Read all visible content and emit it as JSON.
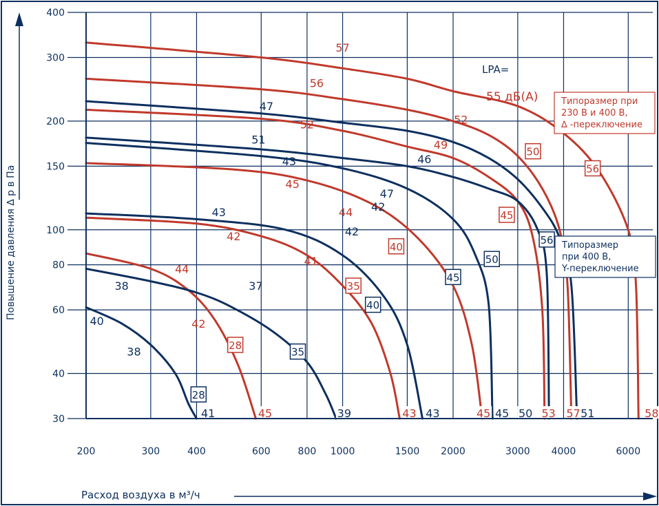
{
  "chart_data": {
    "type": "line",
    "xlabel": "Расход воздуха в м³/ч",
    "ylabel": "Повышение давления ∆ p в Па",
    "x_scale": "log",
    "y_scale": "log",
    "xlim": [
      200,
      7000
    ],
    "ylim": [
      30,
      400
    ],
    "x_ticks": [
      200,
      300,
      400,
      600,
      800,
      1000,
      1500,
      2000,
      3000,
      4000,
      6000
    ],
    "x_tick_labels": [
      "200",
      "300",
      "400",
      "600",
      "800",
      "1000",
      "1500",
      "2000",
      "3000",
      "4000",
      "6000"
    ],
    "y_ticks": [
      30,
      40,
      60,
      80,
      100,
      150,
      200,
      300,
      400
    ],
    "y_tick_labels": [
      "30",
      "40",
      "60",
      "80",
      "100",
      "150",
      "200",
      "300",
      "400"
    ],
    "grid": true,
    "colors": {
      "red": "#c0392b",
      "navy": "#0d2f5e"
    },
    "lpa_label": "LPA=",
    "db_label": "55 дБ(А)",
    "legend_red": [
      "Типоразмер при",
      "230 В и 400 В,",
      "∆ -переключение"
    ],
    "legend_navy": [
      "Типоразмер",
      "при 400 В,",
      "Y-переключение"
    ],
    "series": [
      {
        "size": "28",
        "color": "navy",
        "points": [
          [
            200,
            61
          ],
          [
            250,
            55
          ],
          [
            300,
            48
          ],
          [
            350,
            40
          ],
          [
            380,
            33
          ],
          [
            400,
            30
          ]
        ]
      },
      {
        "size": "28",
        "color": "red",
        "points": [
          [
            200,
            86
          ],
          [
            300,
            78
          ],
          [
            380,
            68
          ],
          [
            450,
            56
          ],
          [
            520,
            42
          ],
          [
            580,
            30
          ]
        ]
      },
      {
        "size": "35",
        "color": "navy",
        "points": [
          [
            200,
            78
          ],
          [
            300,
            72
          ],
          [
            400,
            67
          ],
          [
            500,
            61
          ],
          [
            650,
            52
          ],
          [
            800,
            43
          ],
          [
            900,
            35
          ],
          [
            960,
            30
          ]
        ]
      },
      {
        "size": "35",
        "color": "red",
        "points": [
          [
            200,
            108
          ],
          [
            400,
            104
          ],
          [
            600,
            96
          ],
          [
            800,
            85
          ],
          [
            1000,
            70
          ],
          [
            1200,
            55
          ],
          [
            1350,
            40
          ],
          [
            1430,
            30
          ]
        ]
      },
      {
        "size": "40",
        "color": "navy",
        "points": [
          [
            200,
            111
          ],
          [
            400,
            107
          ],
          [
            700,
            100
          ],
          [
            1000,
            85
          ],
          [
            1300,
            65
          ],
          [
            1500,
            48
          ],
          [
            1650,
            30
          ]
        ]
      },
      {
        "size": "40",
        "color": "red",
        "points": [
          [
            200,
            153
          ],
          [
            500,
            147
          ],
          [
            800,
            137
          ],
          [
            1200,
            118
          ],
          [
            1600,
            95
          ],
          [
            2000,
            70
          ],
          [
            2250,
            48
          ],
          [
            2400,
            30
          ]
        ]
      },
      {
        "size": "45",
        "color": "navy",
        "points": [
          [
            200,
            174
          ],
          [
            600,
            160
          ],
          [
            1000,
            148
          ],
          [
            1500,
            130
          ],
          [
            2000,
            107
          ],
          [
            2300,
            85
          ],
          [
            2500,
            62
          ],
          [
            2560,
            30
          ]
        ]
      },
      {
        "size": "45",
        "color": "red",
        "points": [
          [
            200,
            215
          ],
          [
            600,
            203
          ],
          [
            1000,
            188
          ],
          [
            1500,
            170
          ],
          [
            2000,
            158
          ],
          [
            2500,
            140
          ],
          [
            3000,
            120
          ],
          [
            3300,
            95
          ],
          [
            3500,
            60
          ],
          [
            3550,
            30
          ]
        ]
      },
      {
        "size": "50",
        "color": "navy",
        "points": [
          [
            200,
            180
          ],
          [
            600,
            167
          ],
          [
            1000,
            158
          ],
          [
            1500,
            150
          ],
          [
            2000,
            140
          ],
          [
            2500,
            130
          ],
          [
            3000,
            120
          ],
          [
            3400,
            100
          ],
          [
            3600,
            75
          ],
          [
            3650,
            30
          ]
        ]
      },
      {
        "size": "50",
        "color": "red",
        "points": [
          [
            200,
            262
          ],
          [
            600,
            245
          ],
          [
            1000,
            230
          ],
          [
            1500,
            215
          ],
          [
            2000,
            200
          ],
          [
            2500,
            183
          ],
          [
            3000,
            160
          ],
          [
            3500,
            130
          ],
          [
            3900,
            100
          ],
          [
            4100,
            70
          ],
          [
            4200,
            30
          ]
        ]
      },
      {
        "size": "56",
        "color": "navy",
        "points": [
          [
            200,
            227
          ],
          [
            600,
            210
          ],
          [
            1000,
            198
          ],
          [
            1500,
            188
          ],
          [
            2000,
            175
          ],
          [
            2500,
            158
          ],
          [
            3000,
            138
          ],
          [
            3500,
            115
          ],
          [
            3900,
            95
          ],
          [
            4200,
            70
          ],
          [
            4350,
            30
          ]
        ]
      },
      {
        "size": "56",
        "color": "red",
        "points": [
          [
            200,
            330
          ],
          [
            600,
            300
          ],
          [
            1000,
            280
          ],
          [
            1500,
            262
          ],
          [
            2000,
            242
          ],
          [
            3000,
            220
          ],
          [
            4000,
            185
          ],
          [
            5000,
            145
          ],
          [
            6000,
            100
          ],
          [
            6300,
            70
          ],
          [
            6400,
            30
          ]
        ]
      }
    ],
    "size_labels": [
      {
        "text": "28",
        "color": "navy",
        "at": [
          405,
          35
        ]
      },
      {
        "text": "28",
        "color": "red",
        "at": [
          510,
          48
        ]
      },
      {
        "text": "35",
        "color": "navy",
        "at": [
          755,
          46
        ]
      },
      {
        "text": "35",
        "color": "red",
        "at": [
          1070,
          70
        ]
      },
      {
        "text": "40",
        "color": "navy",
        "at": [
          1210,
          62
        ]
      },
      {
        "text": "40",
        "color": "red",
        "at": [
          1400,
          90
        ]
      },
      {
        "text": "45",
        "color": "navy",
        "at": [
          2000,
          74
        ]
      },
      {
        "text": "45",
        "color": "red",
        "at": [
          2800,
          110
        ]
      },
      {
        "text": "50",
        "color": "navy",
        "at": [
          2550,
          83
        ]
      },
      {
        "text": "50",
        "color": "red",
        "at": [
          3300,
          165
        ]
      },
      {
        "text": "56",
        "color": "navy",
        "at": [
          3600,
          94
        ]
      },
      {
        "text": "56",
        "color": "red",
        "at": [
          4800,
          148
        ]
      }
    ],
    "db_labels": [
      {
        "text": "57",
        "color": "red",
        "at": [
          1000,
          320
        ]
      },
      {
        "text": "56",
        "color": "red",
        "at": [
          850,
          255
        ]
      },
      {
        "text": "52",
        "color": "red",
        "at": [
          800,
          196
        ]
      },
      {
        "text": "52",
        "color": "red",
        "at": [
          2100,
          202
        ]
      },
      {
        "text": "49",
        "color": "red",
        "at": [
          1850,
          172
        ]
      },
      {
        "text": "45",
        "color": "red",
        "at": [
          730,
          134
        ]
      },
      {
        "text": "44",
        "color": "red",
        "at": [
          1020,
          112
        ]
      },
      {
        "text": "42",
        "color": "red",
        "at": [
          505,
          96
        ]
      },
      {
        "text": "41",
        "color": "red",
        "at": [
          820,
          82
        ]
      },
      {
        "text": "44",
        "color": "red",
        "at": [
          365,
          78
        ]
      },
      {
        "text": "42",
        "color": "red",
        "at": [
          405,
          55
        ]
      },
      {
        "text": "47",
        "color": "navy",
        "at": [
          620,
          220
        ]
      },
      {
        "text": "51",
        "color": "navy",
        "at": [
          590,
          178
        ]
      },
      {
        "text": "43",
        "color": "navy",
        "at": [
          715,
          155
        ]
      },
      {
        "text": "46",
        "color": "navy",
        "at": [
          1670,
          157
        ]
      },
      {
        "text": "47",
        "color": "navy",
        "at": [
          1320,
          126
        ]
      },
      {
        "text": "42",
        "color": "navy",
        "at": [
          1250,
          116
        ]
      },
      {
        "text": "43",
        "color": "navy",
        "at": [
          460,
          112
        ]
      },
      {
        "text": "42",
        "color": "navy",
        "at": [
          1060,
          99
        ]
      },
      {
        "text": "37",
        "color": "navy",
        "at": [
          580,
          70
        ]
      },
      {
        "text": "38",
        "color": "navy",
        "at": [
          250,
          70
        ]
      },
      {
        "text": "40",
        "color": "navy",
        "at": [
          214,
          56
        ]
      },
      {
        "text": "38",
        "color": "navy",
        "at": [
          270,
          46
        ]
      },
      {
        "text": "41",
        "color": "navy",
        "at": [
          430,
          30
        ]
      },
      {
        "text": "45",
        "color": "red",
        "at": [
          615,
          30
        ]
      },
      {
        "text": "39",
        "color": "navy",
        "at": [
          1010,
          30
        ]
      },
      {
        "text": "43",
        "color": "red",
        "at": [
          1520,
          30
        ]
      },
      {
        "text": "43",
        "color": "navy",
        "at": [
          1760,
          30
        ]
      },
      {
        "text": "45",
        "color": "red",
        "at": [
          2420,
          30
        ]
      },
      {
        "text": "45",
        "color": "navy",
        "at": [
          2720,
          30
        ]
      },
      {
        "text": "50",
        "color": "navy",
        "at": [
          3150,
          30
        ]
      },
      {
        "text": "53",
        "color": "red",
        "at": [
          3640,
          30
        ]
      },
      {
        "text": "57",
        "color": "red",
        "at": [
          4250,
          30
        ]
      },
      {
        "text": "51",
        "color": "navy",
        "at": [
          4650,
          30
        ]
      },
      {
        "text": "58",
        "color": "red",
        "at": [
          6950,
          30
        ]
      }
    ]
  }
}
